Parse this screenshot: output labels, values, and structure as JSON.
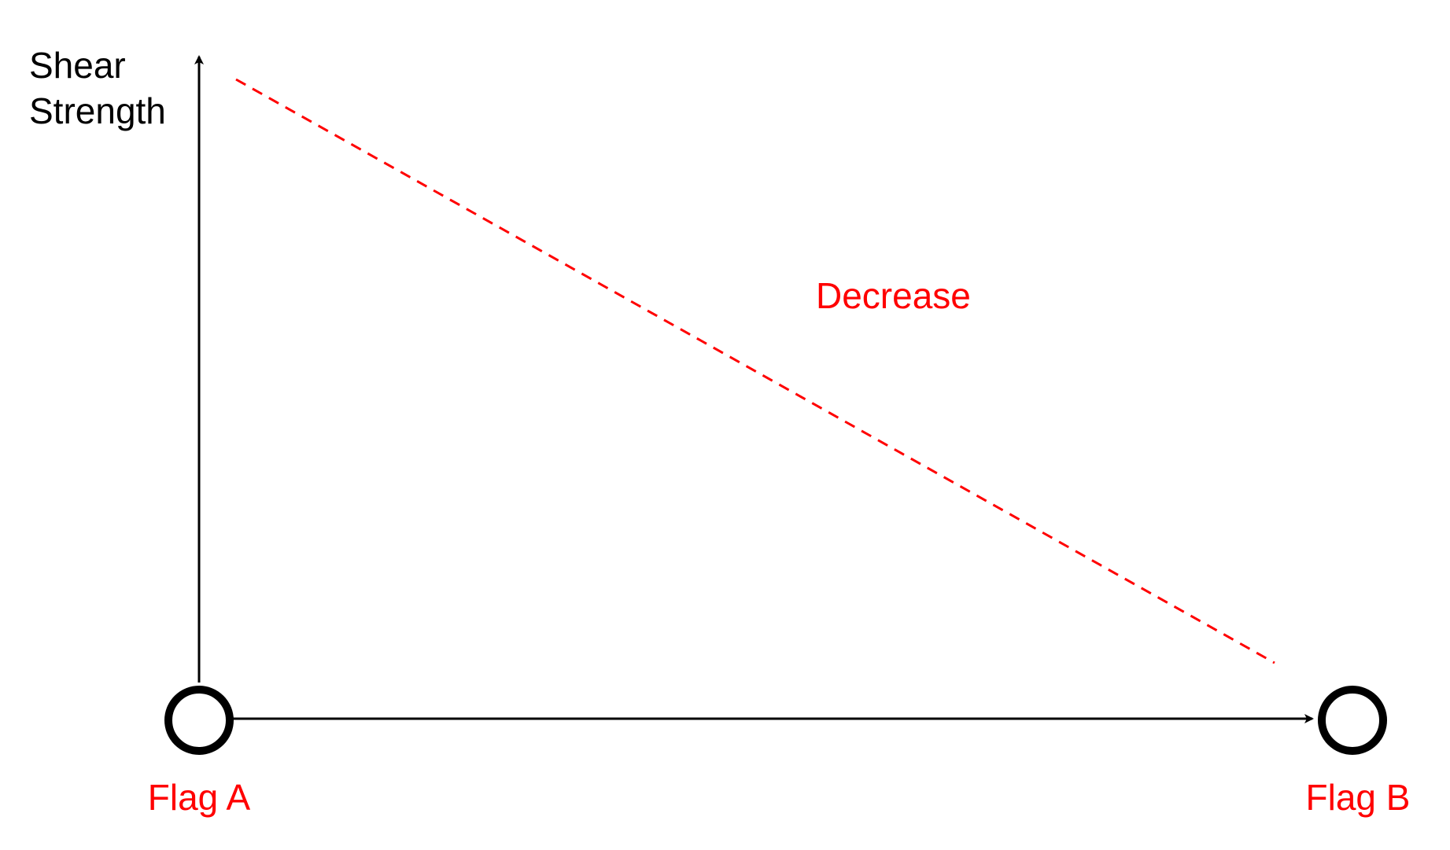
{
  "y_axis": {
    "label_line1": "Shear",
    "label_line2": "Strength"
  },
  "trend": {
    "label": "Decrease",
    "direction": "decreasing",
    "color": "#ff0000",
    "line_style": "dashed"
  },
  "nodes": [
    {
      "label": "Flag A"
    },
    {
      "label": "Flag B"
    }
  ],
  "colors": {
    "axis": "#000000",
    "accent": "#ff0000",
    "background": "#ffffff"
  },
  "icons": [
    "arrow-up-icon",
    "arrow-right-icon",
    "circle-node-icon"
  ]
}
